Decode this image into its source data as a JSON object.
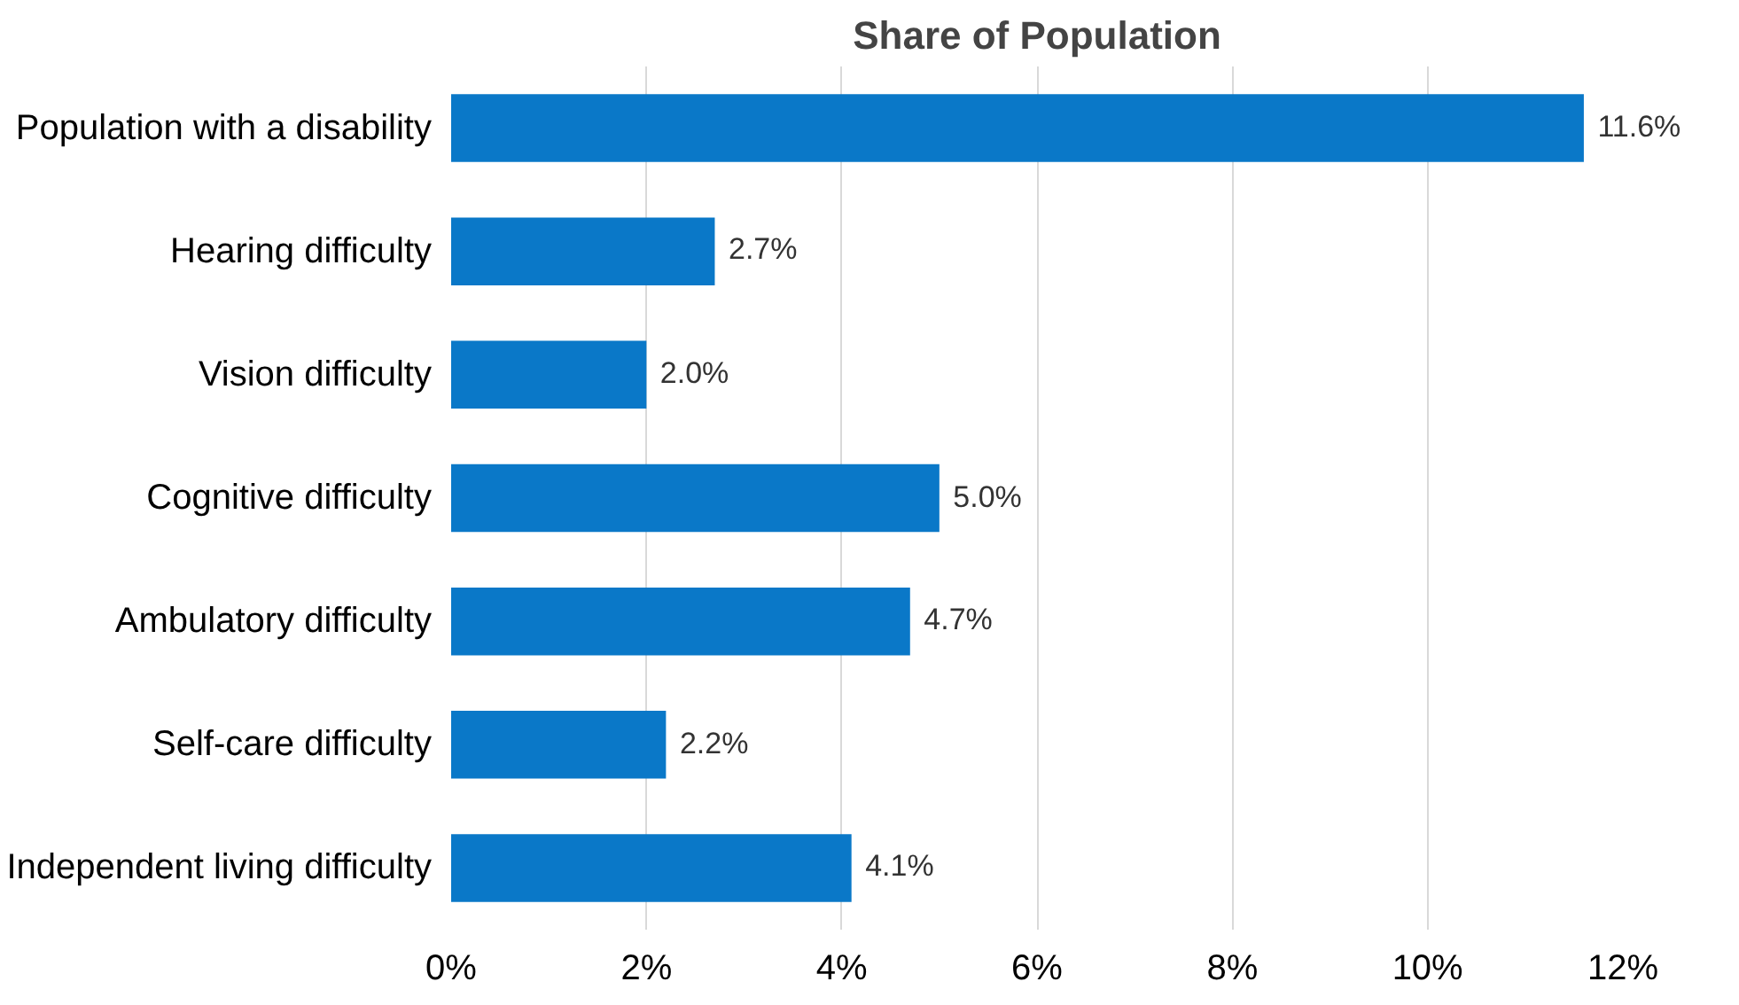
{
  "chart_data": {
    "type": "bar",
    "orientation": "horizontal",
    "title": "Share of Population",
    "categories": [
      "Population with a disability",
      "Hearing difficulty",
      "Vision difficulty",
      "Cognitive difficulty",
      "Ambulatory difficulty",
      "Self-care difficulty",
      "Independent living difficulty"
    ],
    "values": [
      11.6,
      2.7,
      2.0,
      5.0,
      4.7,
      2.2,
      4.1
    ],
    "value_labels": [
      "11.6%",
      "2.7%",
      "2.0%",
      "5.0%",
      "4.7%",
      "2.2%",
      "4.1%"
    ],
    "color": "#0a78c8",
    "xlim": [
      0,
      12
    ],
    "xticks": [
      {
        "value": 0,
        "label": "0%"
      },
      {
        "value": 2,
        "label": "2%"
      },
      {
        "value": 4,
        "label": "4%"
      },
      {
        "value": 6,
        "label": "6%"
      },
      {
        "value": 8,
        "label": "8%"
      },
      {
        "value": 10,
        "label": "10%"
      },
      {
        "value": 12,
        "label": "12%"
      }
    ],
    "grid": "x"
  }
}
